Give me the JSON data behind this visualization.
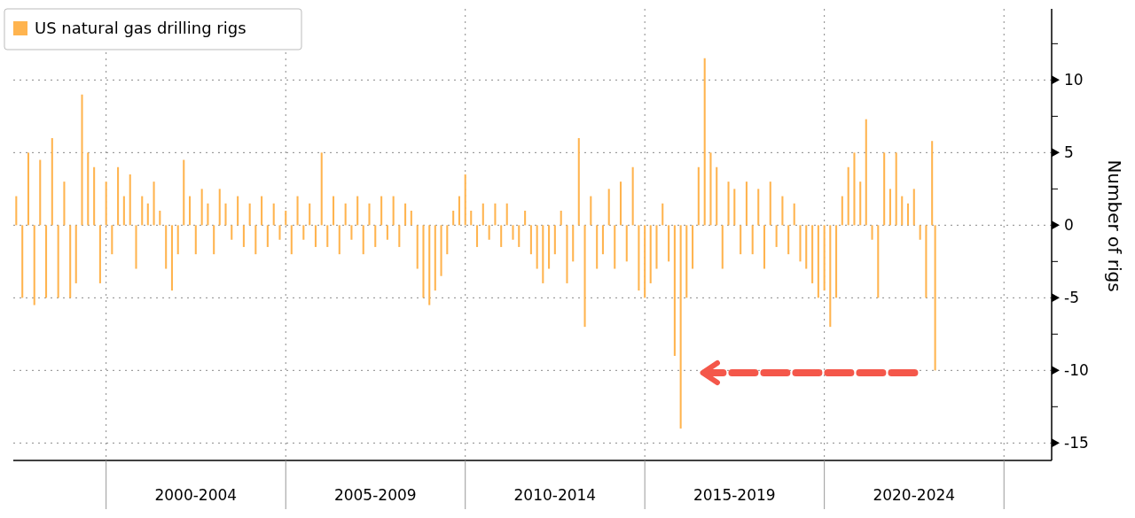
{
  "chart_data": {
    "type": "bar",
    "ylabel": "Number of rigs",
    "legend": "top left",
    "grid": true,
    "x": [
      "1997-07",
      "1997-09",
      "1997-11",
      "1998-01",
      "1998-03",
      "1998-05",
      "1998-07",
      "1998-09",
      "1998-11",
      "1999-01",
      "1999-03",
      "1999-05",
      "1999-07",
      "1999-09",
      "1999-11",
      "2000-01",
      "2000-03",
      "2000-05",
      "2000-07",
      "2000-09",
      "2000-11",
      "2001-01",
      "2001-03",
      "2001-05",
      "2001-07",
      "2001-09",
      "2001-11",
      "2002-01",
      "2002-03",
      "2002-05",
      "2002-07",
      "2002-09",
      "2002-11",
      "2003-01",
      "2003-03",
      "2003-05",
      "2003-07",
      "2003-09",
      "2003-11",
      "2004-01",
      "2004-03",
      "2004-05",
      "2004-07",
      "2004-09",
      "2004-11",
      "2005-01",
      "2005-03",
      "2005-05",
      "2005-07",
      "2005-09",
      "2005-11",
      "2006-01",
      "2006-03",
      "2006-05",
      "2006-07",
      "2006-09",
      "2006-11",
      "2007-01",
      "2007-03",
      "2007-05",
      "2007-07",
      "2007-09",
      "2007-11",
      "2008-01",
      "2008-03",
      "2008-05",
      "2008-07",
      "2008-09",
      "2008-11",
      "2009-01",
      "2009-03",
      "2009-05",
      "2009-07",
      "2009-09",
      "2009-11",
      "2010-01",
      "2010-03",
      "2010-05",
      "2010-07",
      "2010-09",
      "2010-11",
      "2011-01",
      "2011-03",
      "2011-05",
      "2011-07",
      "2011-09",
      "2011-11",
      "2012-01",
      "2012-03",
      "2012-05",
      "2012-07",
      "2012-09",
      "2012-11",
      "2013-01",
      "2013-03",
      "2013-05",
      "2013-07",
      "2013-09",
      "2013-11",
      "2014-01",
      "2014-03",
      "2014-05",
      "2014-07",
      "2014-09",
      "2014-11",
      "2015-01",
      "2015-03",
      "2015-05",
      "2015-07",
      "2015-09",
      "2015-11",
      "2016-01",
      "2016-03",
      "2016-05",
      "2016-07",
      "2016-09",
      "2016-11",
      "2017-01",
      "2017-03",
      "2017-05",
      "2017-07",
      "2017-09",
      "2017-11",
      "2018-01",
      "2018-03",
      "2018-05",
      "2018-07",
      "2018-09",
      "2018-11",
      "2019-01",
      "2019-03",
      "2019-05",
      "2019-07",
      "2019-09",
      "2019-11",
      "2020-01",
      "2020-03",
      "2020-05",
      "2020-07",
      "2020-09",
      "2020-11",
      "2021-01",
      "2021-03",
      "2021-05",
      "2021-07",
      "2021-09",
      "2021-11",
      "2022-01",
      "2022-03",
      "2022-05",
      "2022-07",
      "2022-09",
      "2022-11",
      "2023-01",
      "2023-02"
    ],
    "series": [
      {
        "name": "US natural gas drilling rigs",
        "color": "#ffb44f",
        "values": [
          2,
          -5,
          5,
          -5.5,
          4.5,
          -5,
          6,
          -5,
          3,
          -5,
          -4,
          9,
          5,
          4,
          -4,
          3,
          -2,
          4,
          2,
          3.5,
          -3,
          2,
          1.5,
          3,
          1,
          -3,
          -4.5,
          -2,
          4.5,
          2,
          -2,
          2.5,
          1.5,
          -2,
          2.5,
          1.5,
          -1,
          2,
          -1.5,
          1.5,
          -2,
          2,
          -1.5,
          1.5,
          -1,
          1,
          -2,
          2,
          -1,
          1.5,
          -1.5,
          5,
          -1.5,
          2,
          -2,
          1.5,
          -1,
          2,
          -2,
          1.5,
          -1.5,
          2,
          -1,
          2,
          -1.5,
          1.5,
          1,
          -3,
          -5,
          -5.5,
          -4.5,
          -3.5,
          -2,
          1,
          2,
          3.5,
          1,
          -1.5,
          1.5,
          -1,
          1.5,
          -1.5,
          1.5,
          -1,
          -1.5,
          1,
          -2,
          -3,
          -4,
          -3,
          -2,
          1,
          -4,
          -2.5,
          6,
          -7,
          2,
          -3,
          -2,
          2.5,
          -3,
          3,
          -2.5,
          4,
          -4.5,
          -5,
          -4,
          -3,
          1.5,
          -2.5,
          -9,
          -14,
          -5,
          -3,
          4,
          11.5,
          5,
          4,
          -3,
          3,
          2.5,
          -2,
          3,
          -2,
          2.5,
          -3,
          3,
          -1.5,
          2,
          -2,
          1.5,
          -2.5,
          -3,
          -4,
          -5,
          -4.5,
          -7,
          -5,
          2,
          4,
          5,
          3,
          7.3,
          -1,
          -5,
          5,
          2.5,
          5,
          2,
          1.5,
          2.5,
          -1,
          -5,
          5.8,
          -10
        ]
      }
    ],
    "xlim": [
      "1997-06",
      "2026-05"
    ],
    "xticks": [
      {
        "value": "2000",
        "label": null
      },
      {
        "value": "2002-07",
        "label": "2000-2004"
      },
      {
        "value": "2005",
        "label": null
      },
      {
        "value": "2007-07",
        "label": "2005-2009"
      },
      {
        "value": "2010",
        "label": null
      },
      {
        "value": "2012-07",
        "label": "2010-2014"
      },
      {
        "value": "2015",
        "label": null
      },
      {
        "value": "2017-07",
        "label": "2015-2019"
      },
      {
        "value": "2020",
        "label": null
      },
      {
        "value": "2022-07",
        "label": "2020-2024"
      },
      {
        "value": "2025",
        "label": null
      }
    ],
    "ylim": [
      -16.2,
      14.9
    ],
    "yticks": [
      -15,
      {
        "value": -12.5,
        "label": null
      },
      -10,
      {
        "value": -7.5,
        "label": null
      },
      -5,
      {
        "value": -2.5,
        "label": null
      },
      0,
      {
        "value": 2.5,
        "label": null
      },
      5,
      {
        "value": 7.5,
        "label": null
      },
      10,
      {
        "value": 12.5,
        "label": null
      }
    ]
  }
}
